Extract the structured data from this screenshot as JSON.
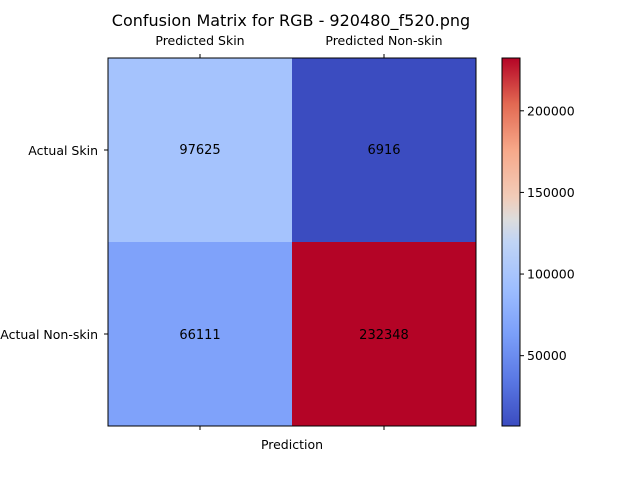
{
  "chart_data": {
    "type": "heatmap",
    "title": "Confusion Matrix for RGB - 920480_f520.png",
    "x_categories": [
      "Predicted Skin",
      "Predicted Non-skin"
    ],
    "y_categories": [
      "Actual Skin",
      "Actual Non-skin"
    ],
    "xlabel": "Prediction",
    "ylabel": "",
    "values": [
      [
        97625,
        6916
      ],
      [
        66111,
        232348
      ]
    ],
    "colormap": "coolwarm",
    "colorbar": {
      "min": 6916,
      "max": 232348,
      "ticks": [
        50000,
        100000,
        150000,
        200000
      ]
    },
    "x_tick_position": "top",
    "grid": false,
    "colors": {
      "cell_low": "#3b4cc0",
      "cell_high": "#b40426"
    }
  }
}
